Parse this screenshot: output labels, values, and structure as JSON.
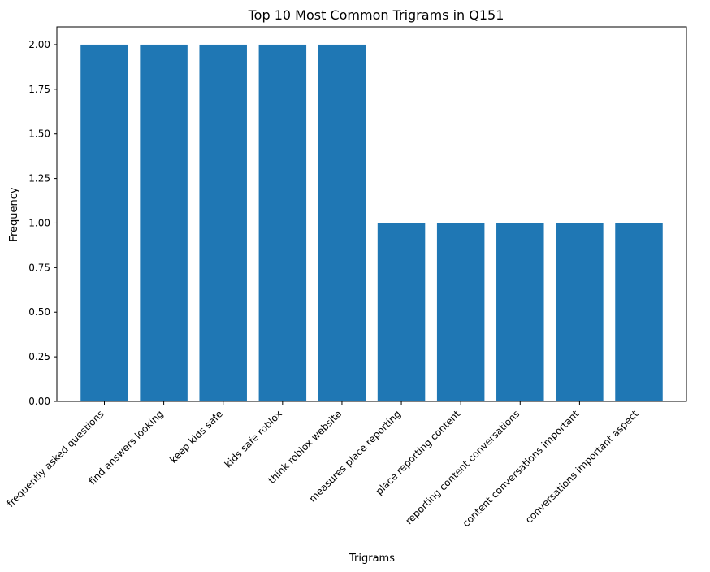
{
  "chart_data": {
    "type": "bar",
    "title": "Top 10 Most Common Trigrams in Q151",
    "xlabel": "Trigrams",
    "ylabel": "Frequency",
    "categories": [
      "frequently asked questions",
      "find answers looking",
      "keep kids safe",
      "kids safe roblox",
      "think roblox website",
      "measures place reporting",
      "place reporting content",
      "reporting content conversations",
      "content conversations important",
      "conversations important aspect"
    ],
    "values": [
      2,
      2,
      2,
      2,
      2,
      1,
      1,
      1,
      1,
      1
    ],
    "ylim": [
      0,
      2.1
    ],
    "yticks": [
      "0.00",
      "0.25",
      "0.50",
      "0.75",
      "1.00",
      "1.25",
      "1.50",
      "1.75",
      "2.00"
    ],
    "bar_color": "#1f77b4",
    "grid": false,
    "legend": "none"
  }
}
